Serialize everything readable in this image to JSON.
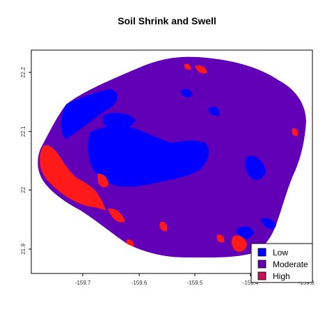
{
  "title": "Soil Shrink and Swell",
  "colors": {
    "low": "#0000ff",
    "moderate": "#6200b8",
    "high": "#ff1a1a",
    "high_swatch": "#c8105a"
  },
  "x_axis": {
    "ticks": [
      "-159.7",
      "-159.6",
      "-159.5",
      "-159.4",
      "-159.3"
    ]
  },
  "y_axis": {
    "ticks": [
      "22.2",
      "22.1",
      "22",
      "21.9"
    ]
  },
  "legend": {
    "items": [
      {
        "label": "Low",
        "class": "low"
      },
      {
        "label": "Moderate",
        "class": "moderate"
      },
      {
        "label": "High",
        "class": "high"
      }
    ]
  }
}
